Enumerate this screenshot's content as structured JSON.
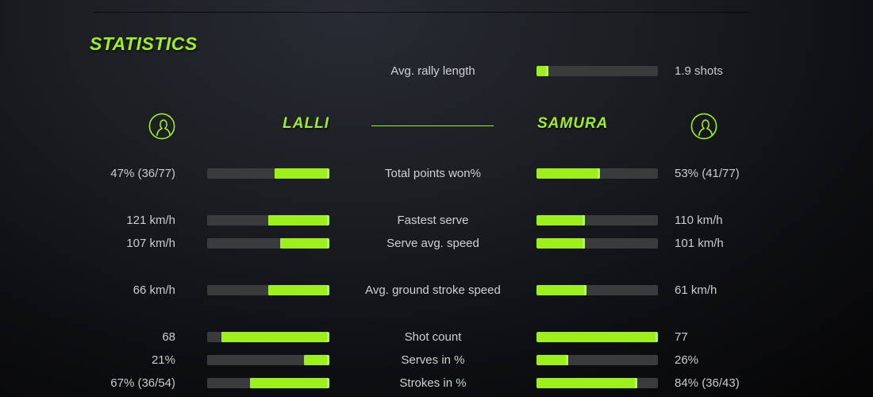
{
  "theme": {
    "accent_color": "#9ef01a",
    "bar_track_color": "#3a3b3d",
    "text_color": "#c9cbce"
  },
  "title": "STATISTICS",
  "players": {
    "left": "LALLI",
    "right": "SAMURA"
  },
  "rally": {
    "label": "Avg. rally length",
    "value": "1.9 shots",
    "fill_pct": 10
  },
  "rows": [
    {
      "label": "Total points won%",
      "left": {
        "value": "47% (36/77)",
        "pct": 45
      },
      "right": {
        "value": "53% (41/77)",
        "pct": 52
      }
    },
    {
      "label": "Fastest serve",
      "left": {
        "value": "121 km/h",
        "pct": 50
      },
      "right": {
        "value": "110 km/h",
        "pct": 40
      }
    },
    {
      "label": "Serve avg. speed",
      "left": {
        "value": "107 km/h",
        "pct": 40
      },
      "right": {
        "value": "101 km/h",
        "pct": 40
      }
    },
    {
      "label": "Avg. ground stroke speed",
      "left": {
        "value": "66 km/h",
        "pct": 50
      },
      "right": {
        "value": "61 km/h",
        "pct": 41
      }
    },
    {
      "label": "Shot count",
      "left": {
        "value": "68",
        "pct": 88
      },
      "right": {
        "value": "77",
        "pct": 100
      }
    },
    {
      "label": "Serves in %",
      "left": {
        "value": "21%",
        "pct": 21
      },
      "right": {
        "value": "26%",
        "pct": 26
      }
    },
    {
      "label": "Strokes in %",
      "left": {
        "value": "67% (36/54)",
        "pct": 65
      },
      "right": {
        "value": "84% (36/43)",
        "pct": 83
      }
    }
  ],
  "chart_data": {
    "type": "bar",
    "layout": "mirrored-comparison",
    "title": "STATISTICS",
    "shared_stat": {
      "label": "Avg. rally length",
      "value": 1.9,
      "unit": "shots"
    },
    "categories": [
      "Total points won%",
      "Fastest serve",
      "Serve avg. speed",
      "Avg. ground stroke speed",
      "Shot count",
      "Serves in %",
      "Strokes in %"
    ],
    "series": [
      {
        "name": "LALLI",
        "values": [
          "47% (36/77)",
          "121 km/h",
          "107 km/h",
          "66 km/h",
          "68",
          "21%",
          "67% (36/54)"
        ],
        "bar_fill_pct": [
          45,
          50,
          40,
          50,
          88,
          21,
          65
        ]
      },
      {
        "name": "SAMURA",
        "values": [
          "53% (41/77)",
          "110 km/h",
          "101 km/h",
          "61 km/h",
          "77",
          "26%",
          "84% (36/43)"
        ],
        "bar_fill_pct": [
          52,
          40,
          40,
          41,
          100,
          26,
          83
        ]
      }
    ],
    "legend_position": "header",
    "grid": false
  }
}
